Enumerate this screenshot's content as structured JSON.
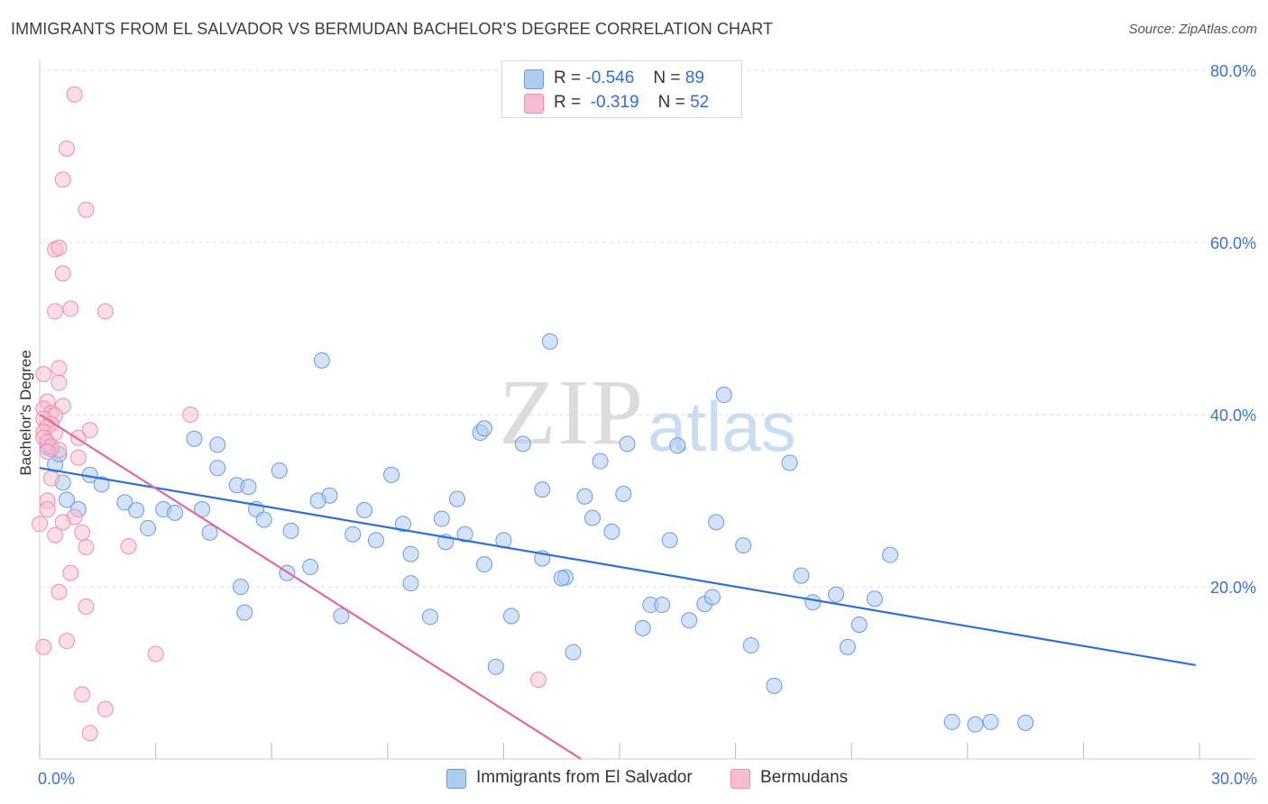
{
  "title": "IMMIGRANTS FROM EL SALVADOR VS BERMUDAN BACHELOR'S DEGREE CORRELATION CHART",
  "source": "Source: ZipAtlas.com",
  "watermark": {
    "zip": "ZIP",
    "atlas": "atlas"
  },
  "legend": {
    "rows": [
      {
        "r_label": "R =",
        "r_value": "-0.546",
        "n_label": "N =",
        "n_value": "89",
        "color": "#aecbf0"
      },
      {
        "r_label": "R =",
        "r_value": "-0.319",
        "n_label": "N =",
        "n_value": "52",
        "color": "#f7bcd0"
      }
    ]
  },
  "bottom_legend": {
    "series1": "Immigrants from El Salvador",
    "series2": "Bermudans"
  },
  "colors": {
    "blue_fill": "#aecbf0",
    "blue_stroke": "#6b9be0",
    "blue_line": "#2f6fd6",
    "pink_fill": "#f7bcd0",
    "pink_stroke": "#ec8fb0",
    "pink_line": "#e4699a",
    "axis_text": "#3b73c6",
    "grid": "#dddddd"
  },
  "chart_data": {
    "type": "scatter",
    "title": "IMMIGRANTS FROM EL SALVADOR VS BERMUDAN BACHELOR'S DEGREE CORRELATION CHART",
    "xlabel": "",
    "ylabel": "Bachelor's Degree",
    "xlim": [
      0,
      30
    ],
    "ylim": [
      0,
      80
    ],
    "x_tick_labels": [
      "0.0%",
      "30.0%"
    ],
    "y_tick_labels": [
      "20.0%",
      "40.0%",
      "60.0%",
      "80.0%"
    ],
    "y_ticks": [
      20,
      40,
      60,
      80
    ],
    "grid": true,
    "legend_position": "top-center",
    "series": [
      {
        "name": "Immigrants from El Salvador",
        "r": -0.546,
        "n": 89,
        "trend": {
          "x": [
            0,
            29.9
          ],
          "y": [
            33.8,
            10.9
          ]
        },
        "points": [
          [
            0.2,
            36.2
          ],
          [
            0.4,
            34.2
          ],
          [
            0.5,
            35.4
          ],
          [
            0.6,
            32.1
          ],
          [
            0.7,
            30.1
          ],
          [
            1.0,
            29.0
          ],
          [
            1.3,
            33.0
          ],
          [
            1.6,
            31.9
          ],
          [
            2.2,
            29.8
          ],
          [
            2.5,
            28.9
          ],
          [
            2.8,
            26.8
          ],
          [
            3.2,
            29.0
          ],
          [
            3.5,
            28.6
          ],
          [
            4.0,
            37.2
          ],
          [
            4.2,
            29.0
          ],
          [
            4.4,
            26.3
          ],
          [
            4.6,
            33.8
          ],
          [
            4.6,
            36.5
          ],
          [
            5.1,
            31.8
          ],
          [
            5.4,
            31.6
          ],
          [
            5.6,
            29.0
          ],
          [
            5.2,
            20.0
          ],
          [
            5.8,
            27.8
          ],
          [
            5.3,
            17.0
          ],
          [
            6.2,
            33.5
          ],
          [
            6.5,
            26.5
          ],
          [
            6.4,
            21.6
          ],
          [
            7.0,
            22.3
          ],
          [
            7.5,
            30.6
          ],
          [
            7.2,
            30.0
          ],
          [
            8.1,
            26.1
          ],
          [
            8.4,
            28.9
          ],
          [
            8.7,
            25.4
          ],
          [
            9.1,
            33.0
          ],
          [
            9.4,
            27.3
          ],
          [
            9.6,
            23.8
          ],
          [
            7.3,
            46.3
          ],
          [
            7.8,
            16.6
          ],
          [
            9.6,
            20.4
          ],
          [
            10.1,
            16.5
          ],
          [
            10.4,
            27.9
          ],
          [
            10.5,
            25.2
          ],
          [
            10.8,
            30.2
          ],
          [
            11.0,
            26.1
          ],
          [
            11.4,
            37.9
          ],
          [
            11.5,
            38.4
          ],
          [
            11.5,
            22.6
          ],
          [
            11.8,
            10.7
          ],
          [
            12.0,
            25.4
          ],
          [
            12.2,
            16.6
          ],
          [
            12.5,
            36.6
          ],
          [
            13.0,
            31.3
          ],
          [
            13.0,
            23.3
          ],
          [
            13.2,
            48.5
          ],
          [
            13.6,
            21.1
          ],
          [
            13.5,
            21.0
          ],
          [
            13.8,
            12.4
          ],
          [
            14.1,
            30.5
          ],
          [
            14.3,
            28.0
          ],
          [
            14.5,
            34.6
          ],
          [
            14.8,
            26.4
          ],
          [
            15.1,
            30.8
          ],
          [
            15.2,
            36.6
          ],
          [
            15.6,
            15.2
          ],
          [
            15.8,
            17.9
          ],
          [
            16.1,
            17.9
          ],
          [
            16.3,
            25.4
          ],
          [
            16.5,
            36.4
          ],
          [
            16.8,
            16.1
          ],
          [
            17.2,
            18.0
          ],
          [
            17.4,
            18.8
          ],
          [
            17.5,
            27.5
          ],
          [
            17.7,
            42.3
          ],
          [
            18.2,
            24.8
          ],
          [
            18.4,
            13.2
          ],
          [
            19.0,
            8.5
          ],
          [
            19.4,
            34.4
          ],
          [
            19.7,
            21.3
          ],
          [
            20.0,
            18.2
          ],
          [
            20.6,
            19.1
          ],
          [
            20.9,
            13.0
          ],
          [
            21.2,
            15.6
          ],
          [
            21.6,
            18.6
          ],
          [
            22.0,
            23.7
          ],
          [
            23.6,
            4.3
          ],
          [
            24.2,
            4.0
          ],
          [
            24.6,
            4.3
          ],
          [
            25.5,
            4.2
          ],
          [
            0.3,
            36.0
          ]
        ]
      },
      {
        "name": "Bermudans",
        "r": -0.319,
        "n": 52,
        "trend": {
          "x": [
            0,
            14.0
          ],
          "y": [
            40.0,
            0.0
          ]
        },
        "points": [
          [
            0.9,
            77.2
          ],
          [
            0.7,
            70.9
          ],
          [
            0.6,
            67.3
          ],
          [
            1.2,
            63.8
          ],
          [
            0.4,
            59.2
          ],
          [
            0.5,
            59.4
          ],
          [
            0.6,
            56.4
          ],
          [
            0.4,
            52.0
          ],
          [
            0.8,
            52.3
          ],
          [
            1.7,
            52.0
          ],
          [
            0.5,
            45.4
          ],
          [
            0.1,
            44.7
          ],
          [
            0.5,
            43.7
          ],
          [
            0.2,
            41.5
          ],
          [
            0.6,
            41.0
          ],
          [
            0.1,
            40.7
          ],
          [
            0.3,
            40.2
          ],
          [
            0.4,
            39.9
          ],
          [
            0.1,
            39.5
          ],
          [
            0.3,
            38.9
          ],
          [
            0.2,
            38.6
          ],
          [
            0.1,
            38.0
          ],
          [
            0.4,
            37.9
          ],
          [
            0.1,
            37.3
          ],
          [
            0.2,
            36.8
          ],
          [
            0.3,
            36.3
          ],
          [
            0.5,
            35.9
          ],
          [
            0.2,
            35.7
          ],
          [
            1.0,
            37.3
          ],
          [
            1.3,
            38.2
          ],
          [
            1.0,
            35.0
          ],
          [
            0.3,
            32.6
          ],
          [
            0.2,
            30.0
          ],
          [
            0.9,
            28.1
          ],
          [
            0.6,
            27.5
          ],
          [
            0.0,
            27.3
          ],
          [
            0.4,
            26.0
          ],
          [
            1.1,
            26.3
          ],
          [
            1.2,
            24.6
          ],
          [
            2.3,
            24.7
          ],
          [
            0.8,
            21.6
          ],
          [
            0.5,
            19.4
          ],
          [
            1.2,
            17.7
          ],
          [
            0.7,
            13.7
          ],
          [
            3.0,
            12.2
          ],
          [
            0.1,
            13.0
          ],
          [
            1.1,
            7.5
          ],
          [
            1.7,
            5.8
          ],
          [
            1.3,
            3.0
          ],
          [
            3.9,
            40.0
          ],
          [
            12.9,
            9.2
          ],
          [
            0.2,
            29.0
          ]
        ]
      }
    ]
  }
}
